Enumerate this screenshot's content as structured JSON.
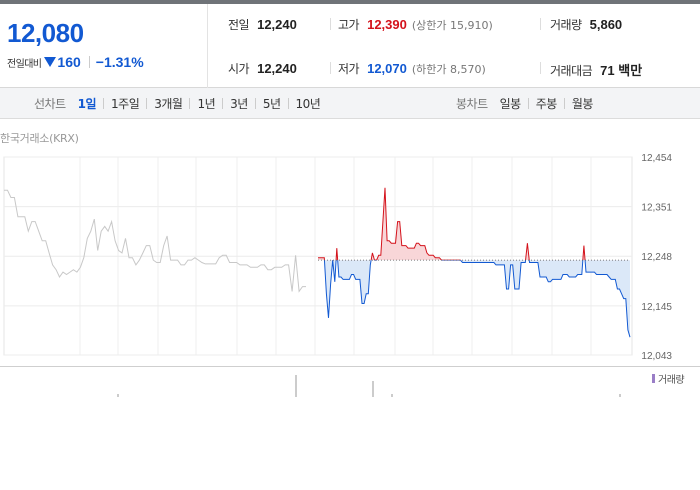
{
  "quote": {
    "price": "12,080",
    "change_label": "전일대비",
    "change_value": "160",
    "change_pct": "−1.31%"
  },
  "stats": {
    "prev_close": {
      "label": "전일",
      "value": "12,240"
    },
    "open": {
      "label": "시가",
      "value": "12,240"
    },
    "high": {
      "label": "고가",
      "value": "12,390",
      "sub": "(상한가 15,910)"
    },
    "low": {
      "label": "저가",
      "value": "12,070",
      "sub": "(하한가 8,570)"
    },
    "volume": {
      "label": "거래량",
      "value": "5,860"
    },
    "amount": {
      "label": "거래대금",
      "value": "71 백만"
    }
  },
  "period_tabs": {
    "label": "선차트",
    "items": [
      "1일",
      "1주일",
      "3개월",
      "1년",
      "3년",
      "5년",
      "10년"
    ],
    "active": "1일"
  },
  "candle_tabs": {
    "label": "봉차트",
    "items": [
      "일봉",
      "주봉",
      "월봉"
    ]
  },
  "source": "한국거래소(KRX)",
  "volume_legend": "거래량",
  "colors": {
    "accent": "#1259d2",
    "up": "#d4121b",
    "down": "#1259d2"
  },
  "chart_data": {
    "type": "line",
    "y_ticks": [
      "12,454",
      "12,351",
      "12,248",
      "12,145",
      "12,043"
    ],
    "ylim": [
      12043,
      12454
    ],
    "reference": 12240,
    "grid": true,
    "prev_series": [
      12385,
      12385,
      12370,
      12370,
      12330,
      12330,
      12330,
      12300,
      12320,
      12320,
      12300,
      12280,
      12280,
      12255,
      12230,
      12220,
      12205,
      12215,
      12210,
      12215,
      12220,
      12215,
      12225,
      12245,
      12285,
      12300,
      12325,
      12260,
      12300,
      12310,
      12300,
      12320,
      12280,
      12260,
      12255,
      12285,
      12245,
      12245,
      12230,
      12240,
      12255,
      12270,
      12270,
      12240,
      12235,
      12235,
      12270,
      12290,
      12240,
      12240,
      12240,
      12230,
      12230,
      12240,
      12240,
      12245,
      12240,
      12235,
      12232,
      12232,
      12232,
      12232,
      12245,
      12250,
      12250,
      12235,
      12235,
      12235,
      12230,
      12230,
      12230,
      12225,
      12225,
      12225,
      12230,
      12230,
      12220,
      12220,
      12225,
      12225,
      12225,
      12230,
      12230,
      12175,
      12250,
      12175,
      12185,
      12185
    ],
    "today_series": [
      12245,
      12245,
      12245,
      12245,
      12170,
      12120,
      12190,
      12240,
      12195,
      12265,
      12205,
      12205,
      12200,
      12200,
      12200,
      12200,
      12210,
      12210,
      12200,
      12200,
      12200,
      12150,
      12150,
      12170,
      12170,
      12230,
      12255,
      12240,
      12240,
      12250,
      12250,
      12320,
      12390,
      12280,
      12280,
      12275,
      12275,
      12275,
      12320,
      12320,
      12270,
      12270,
      12270,
      12265,
      12265,
      12265,
      12265,
      12275,
      12275,
      12270,
      12270,
      12270,
      12255,
      12250,
      12250,
      12250,
      12245,
      12245,
      12245,
      12240,
      12240,
      12240,
      12240,
      12240,
      12240,
      12240,
      12240,
      12240,
      12240,
      12235,
      12235,
      12235,
      12235,
      12235,
      12235,
      12235,
      12235,
      12235,
      12235,
      12235,
      12235,
      12235,
      12235,
      12235,
      12235,
      12230,
      12230,
      12230,
      12230,
      12230,
      12180,
      12180,
      12230,
      12230,
      12180,
      12180,
      12180,
      12235,
      12235,
      12235,
      12275,
      12235,
      12235,
      12235,
      12235,
      12235,
      12205,
      12205,
      12205,
      12205,
      12195,
      12195,
      12200,
      12200,
      12200,
      12200,
      12200,
      12210,
      12210,
      12210,
      12205,
      12205,
      12205,
      12205,
      12210,
      12210,
      12210,
      12270,
      12215,
      12215,
      12215,
      12215,
      12215,
      12210,
      12210,
      12210,
      12210,
      12210,
      12210,
      12205,
      12200,
      12200,
      12200,
      12180,
      12180,
      12170,
      12160,
      12160,
      12095,
      12080
    ]
  }
}
